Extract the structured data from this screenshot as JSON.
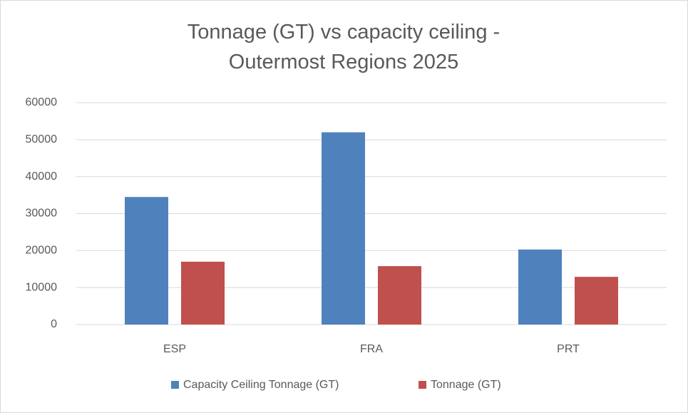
{
  "chart_data": {
    "type": "bar",
    "title": "Tonnage (GT) vs capacity ceiling - Outermost Regions 2025",
    "categories": [
      "ESP",
      "FRA",
      "PRT"
    ],
    "series": [
      {
        "name": "Capacity Ceiling Tonnage (GT)",
        "color": "#4f81bd",
        "values": [
          34500,
          52000,
          20300
        ]
      },
      {
        "name": "Tonnage (GT)",
        "color": "#c0504d",
        "values": [
          17000,
          15800,
          12900
        ]
      }
    ],
    "ylim": [
      0,
      60000
    ],
    "yticks": [
      0,
      10000,
      20000,
      30000,
      40000,
      50000,
      60000
    ],
    "grid": true,
    "legend": "bottom"
  }
}
